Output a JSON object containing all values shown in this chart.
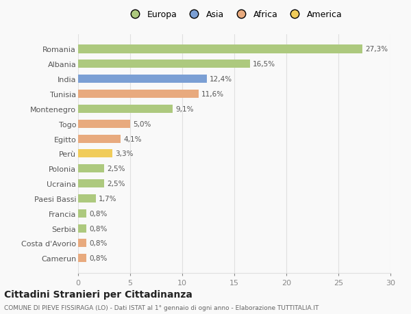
{
  "categories": [
    "Romania",
    "Albania",
    "India",
    "Tunisia",
    "Montenegro",
    "Togo",
    "Egitto",
    "Perù",
    "Polonia",
    "Ucraina",
    "Paesi Bassi",
    "Francia",
    "Serbia",
    "Costa d'Avorio",
    "Camerun"
  ],
  "values": [
    27.3,
    16.5,
    12.4,
    11.6,
    9.1,
    5.0,
    4.1,
    3.3,
    2.5,
    2.5,
    1.7,
    0.8,
    0.8,
    0.8,
    0.8
  ],
  "labels": [
    "27,3%",
    "16,5%",
    "12,4%",
    "11,6%",
    "9,1%",
    "5,0%",
    "4,1%",
    "3,3%",
    "2,5%",
    "2,5%",
    "1,7%",
    "0,8%",
    "0,8%",
    "0,8%",
    "0,8%"
  ],
  "colors": [
    "#adc97e",
    "#adc97e",
    "#7b9fd4",
    "#e8aa7e",
    "#adc97e",
    "#e8aa7e",
    "#e8aa7e",
    "#f0cc5a",
    "#adc97e",
    "#adc97e",
    "#adc97e",
    "#adc97e",
    "#adc97e",
    "#e8aa7e",
    "#e8aa7e"
  ],
  "legend": [
    {
      "label": "Europa",
      "color": "#adc97e"
    },
    {
      "label": "Asia",
      "color": "#7b9fd4"
    },
    {
      "label": "Africa",
      "color": "#e8aa7e"
    },
    {
      "label": "America",
      "color": "#f0cc5a"
    }
  ],
  "xlim": [
    0,
    30
  ],
  "xticks": [
    0,
    5,
    10,
    15,
    20,
    25,
    30
  ],
  "title": "Cittadini Stranieri per Cittadinanza",
  "subtitle": "COMUNE DI PIEVE FISSIRAGA (LO) - Dati ISTAT al 1° gennaio di ogni anno - Elaborazione TUTTITALIA.IT",
  "bg_color": "#f9f9f9",
  "grid_color": "#e0e0e0"
}
